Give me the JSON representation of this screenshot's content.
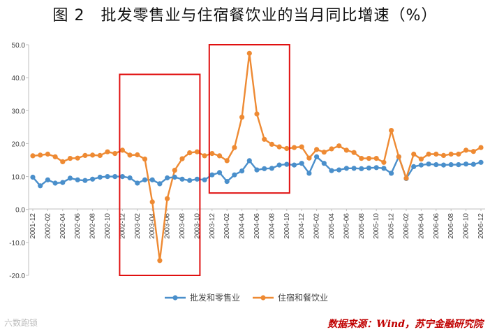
{
  "title": "图 2　批发零售业与住宿餐饮业的当月同比增速（%）",
  "source": "数据来源：Wind，苏宁金融研究院",
  "watermark": "六数跑锁",
  "colors": {
    "retail": "#4A8FCB",
    "catering": "#EE8A33",
    "highlight": "#e01010"
  },
  "chart_data": {
    "type": "line",
    "title": "图 2　批发零售业与住宿餐饮业的当月同比增速（%）",
    "xlabel": "",
    "ylabel": "",
    "ylim": [
      -20,
      50
    ],
    "yticks": [
      "50.0",
      "40.0",
      "30.0",
      "20.0",
      "10.0",
      "0.0",
      "-10.0",
      "-20.0"
    ],
    "grid": false,
    "legend_position": "bottom",
    "x": [
      "2001-12",
      "2002-01",
      "2002-02",
      "2002-03",
      "2002-04",
      "2002-05",
      "2002-06",
      "2002-07",
      "2002-08",
      "2002-09",
      "2002-10",
      "2002-11",
      "2002-12",
      "2003-01",
      "2003-02",
      "2003-03",
      "2003-04",
      "2003-05",
      "2003-06",
      "2003-07",
      "2003-08",
      "2003-09",
      "2003-10",
      "2003-11",
      "2003-12",
      "2004-01",
      "2004-02",
      "2004-03",
      "2004-04",
      "2004-05",
      "2004-06",
      "2004-07",
      "2004-08",
      "2004-09",
      "2004-10",
      "2004-11",
      "2004-12",
      "2005-01",
      "2005-02",
      "2005-03",
      "2005-04",
      "2005-05",
      "2005-06",
      "2005-07",
      "2005-08",
      "2005-09",
      "2005-10",
      "2005-11",
      "2005-12",
      "2006-01",
      "2006-02",
      "2006-03",
      "2006-04",
      "2006-05",
      "2006-06",
      "2006-07",
      "2006-08",
      "2006-09",
      "2006-10",
      "2006-11",
      "2006-12"
    ],
    "xticks": [
      "2001-12",
      "2002-02",
      "2002-04",
      "2002-06",
      "2002-08",
      "2002-10",
      "2002-12",
      "2003-02",
      "2003-04",
      "2003-06",
      "2003-08",
      "2003-10",
      "2003-12",
      "2004-02",
      "2004-04",
      "2004-06",
      "2004-08",
      "2004-10",
      "2004-12",
      "2005-02",
      "2005-04",
      "2005-06",
      "2005-08",
      "2005-10",
      "2005-12",
      "2006-02",
      "2006-04",
      "2006-06",
      "2006-08",
      "2006-10",
      "2006-12"
    ],
    "series": [
      {
        "name": "批发和零售业",
        "values": [
          9.8,
          7.2,
          9.0,
          8.0,
          8.2,
          9.5,
          9.0,
          8.8,
          9.2,
          9.8,
          10.0,
          10.0,
          10.0,
          9.6,
          8.0,
          9.0,
          9.0,
          7.8,
          9.6,
          9.8,
          9.2,
          8.8,
          9.2,
          9.0,
          10.5,
          11.2,
          8.5,
          10.5,
          11.7,
          14.8,
          12.0,
          12.4,
          12.5,
          13.5,
          13.7,
          13.5,
          14.0,
          11.0,
          16.0,
          14.0,
          11.8,
          12.0,
          12.5,
          12.5,
          12.4,
          12.6,
          12.7,
          12.5,
          11.0,
          16.0,
          9.4,
          13.0,
          13.5,
          13.8,
          13.6,
          13.5,
          13.6,
          13.6,
          13.8,
          13.7,
          14.3
        ]
      },
      {
        "name": "住宿和餐饮业",
        "values": [
          16.3,
          16.5,
          16.8,
          16.0,
          14.5,
          15.5,
          15.6,
          16.4,
          16.5,
          16.4,
          17.5,
          17.0,
          18.0,
          16.5,
          16.6,
          15.3,
          2.3,
          -15.5,
          3.3,
          11.9,
          15.4,
          17.2,
          17.5,
          16.3,
          17.0,
          16.3,
          14.8,
          18.8,
          28.0,
          47.4,
          29.0,
          21.3,
          19.8,
          19.0,
          18.5,
          18.8,
          19.0,
          15.6,
          18.2,
          17.4,
          18.4,
          19.3,
          18.0,
          17.3,
          15.5,
          15.5,
          15.5,
          14.3,
          24.0,
          16.0,
          9.5,
          16.8,
          15.3,
          16.8,
          16.8,
          16.4,
          16.8,
          16.8,
          18.0,
          17.6,
          18.8
        ]
      }
    ],
    "highlights": [
      {
        "from": "2002-12",
        "to": "2003-10",
        "ylim": [
          -20,
          41
        ]
      },
      {
        "from": "2003-12",
        "to": "2004-10",
        "ylim": [
          5,
          50
        ]
      }
    ]
  }
}
